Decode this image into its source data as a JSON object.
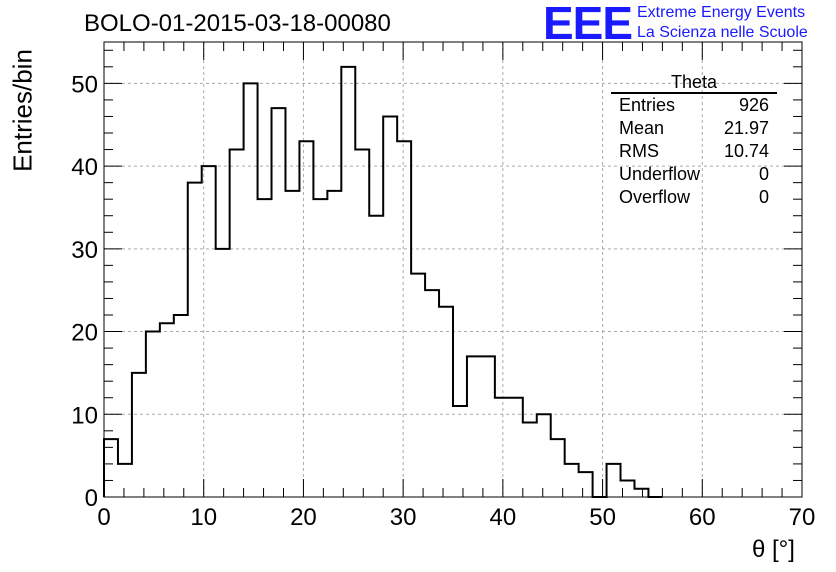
{
  "chart_data": {
    "type": "histogram",
    "title": "BOLO-01-2015-03-18-00080",
    "xlabel": "θ [°]",
    "ylabel": "Entries/bin",
    "xlim": [
      0,
      70
    ],
    "ylim": [
      0,
      55
    ],
    "bin_width": 1.4,
    "x_ticks": [
      0,
      10,
      20,
      30,
      40,
      50,
      60,
      70
    ],
    "y_ticks": [
      0,
      10,
      20,
      30,
      40,
      50
    ],
    "grid": true,
    "values": [
      7,
      4,
      15,
      20,
      21,
      22,
      38,
      40,
      30,
      42,
      50,
      36,
      47,
      37,
      43,
      36,
      37,
      52,
      42,
      34,
      46,
      43,
      27,
      25,
      23,
      11,
      17,
      17,
      12,
      12,
      9,
      10,
      7,
      4,
      3,
      0,
      4,
      2,
      1,
      0,
      0,
      0,
      0,
      0,
      0,
      0,
      0,
      0,
      0,
      0
    ]
  },
  "logo": {
    "text": "EEE",
    "line1": "Extreme Energy Events",
    "line2": "La Scienza nelle Scuole"
  },
  "stats": {
    "name": "Theta",
    "rows": [
      {
        "label": "Entries",
        "value": "926"
      },
      {
        "label": "Mean",
        "value": "21.97"
      },
      {
        "label": "RMS",
        "value": "10.74"
      },
      {
        "label": "Underflow",
        "value": "0"
      },
      {
        "label": "Overflow",
        "value": "0"
      }
    ]
  },
  "colors": {
    "logo": "#1a1aff",
    "line": "#000000",
    "grid": "#aaaaaa"
  }
}
